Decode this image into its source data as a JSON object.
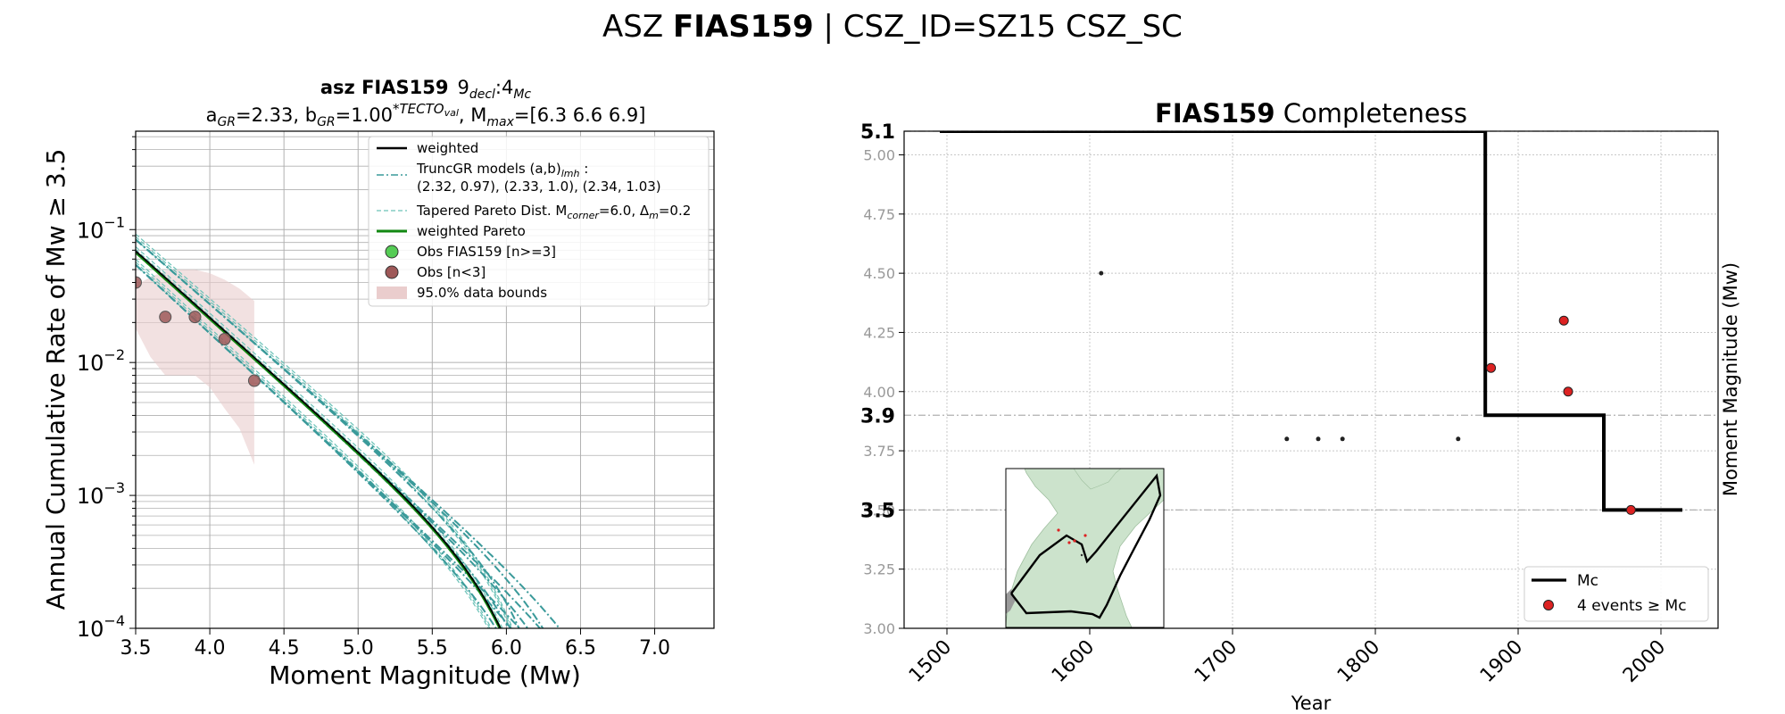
{
  "suptitle": {
    "prefix": "ASZ",
    "bold": "FIAS159",
    "suffix": "| CSZ_ID=SZ15 CSZ_SC"
  },
  "chart_data": [
    {
      "type": "line",
      "panel": "gr",
      "title_line1": {
        "bold": "asz FIAS159",
        "rest": "9",
        "decl": "decl",
        "colon": ":4",
        "mc": "Mc"
      },
      "title_line2": {
        "a": "a",
        "a_sub": "GR",
        "a_val": "=2.33,  b",
        "b_sub": "GR",
        "b_val": "=1.00",
        "b_sup": "*TECTO",
        "b_sup_sub": "val",
        "m_rest": ", M",
        "m_sub": "max",
        "m_val": "=[6.3 6.6 6.9]"
      },
      "xlabel": "Moment Magnitude (Mw)",
      "ylabel": "Annual Cumulative Rate of Mw  ≥  3.5",
      "xlim": [
        3.5,
        7.4
      ],
      "ylim": [
        0.0001,
        0.55
      ],
      "yscale": "log",
      "xticks": [
        "3.5",
        "4.0",
        "4.5",
        "5.0",
        "5.5",
        "6.0",
        "6.5",
        "7.0"
      ],
      "yticks": [
        {
          "v": 0.1,
          "base": "10",
          "exp": "−1"
        },
        {
          "v": 0.01,
          "base": "10",
          "exp": "−2"
        },
        {
          "v": 0.001,
          "base": "10",
          "exp": "−3"
        },
        {
          "v": 0.0001,
          "base": "10",
          "exp": "−4"
        }
      ],
      "grid": true,
      "legend_position": "top-right",
      "legend": {
        "weighted": "weighted",
        "truncgr_a": "TruncGR models (a,b)",
        "truncgr_sub": "lmh",
        "truncgr_b": " :",
        "truncgr_line2": " (2.32, 0.97), (2.33, 1.0), (2.34, 1.03)",
        "tapered_a": "Tapered Pareto Dist. M",
        "tapered_sub": "corner",
        "tapered_b": "=6.0, Δ",
        "tapered_sub2": "m",
        "tapered_c": "=0.2",
        "weighted_pareto": "weighted Pareto",
        "obs_main": "Obs FIAS159 [n>=3]",
        "obs_small": "Obs [n<3]",
        "bounds": "95.0% data bounds"
      },
      "observations": {
        "x": [
          3.5,
          3.7,
          3.9,
          4.1,
          4.3
        ],
        "y": [
          0.04,
          0.022,
          0.022,
          0.015,
          0.0073
        ]
      },
      "bounds": {
        "x": [
          3.5,
          3.6,
          3.7,
          3.8,
          3.9,
          4.0,
          4.1,
          4.2,
          4.3
        ],
        "upper": [
          0.038,
          0.044,
          0.049,
          0.05,
          0.05,
          0.047,
          0.042,
          0.036,
          0.029
        ],
        "lower": [
          0.018,
          0.011,
          0.008,
          0.008,
          0.008,
          0.0065,
          0.0045,
          0.0032,
          0.0017
        ]
      },
      "models": {
        "a": [
          2.32,
          2.33,
          2.34
        ],
        "b": [
          0.97,
          1.0,
          1.03
        ],
        "mmax": [
          6.3,
          6.6,
          6.9
        ],
        "mmin": 3.5,
        "mcorner": 6.0
      },
      "colors": {
        "truncgr": "#3a9a9a",
        "tapered": "#6cc2b8",
        "weighted": "#000000",
        "pareto": "#118811",
        "obs": "#9e5858",
        "obs_main": "#55cc55",
        "bounds": "#eacdcd"
      }
    },
    {
      "type": "line",
      "panel": "completeness",
      "title_bold": "FIAS159",
      "title_rest": "Completeness",
      "xlabel": "Year",
      "ylabel": "Moment Magnitude (Mw)",
      "xlim": [
        1470,
        2040
      ],
      "ylim": [
        3.0,
        5.1
      ],
      "xticks": [
        1500,
        1600,
        1700,
        1800,
        1900,
        2000
      ],
      "yticks": [
        "3.00",
        "3.25",
        "3.50",
        "3.75",
        "4.00",
        "4.25",
        "4.50",
        "4.75",
        "5.00"
      ],
      "mc_levels": [
        "5.1",
        "3.9",
        "3.5"
      ],
      "grid": true,
      "legend_position": "bottom-right",
      "legend": {
        "mc": "Mc",
        "events": "4 events  ≥  Mc"
      },
      "mc_step": {
        "x": [
          1495,
          1877,
          1877,
          1960,
          1960,
          2015
        ],
        "y": [
          5.1,
          5.1,
          3.9,
          3.9,
          3.5,
          3.5
        ]
      },
      "events_above": {
        "x": [
          1881,
          1932,
          1935,
          1979
        ],
        "y": [
          4.1,
          4.3,
          4.0,
          3.5
        ]
      },
      "events_below": {
        "x": [
          1608,
          1738,
          1760,
          1777,
          1858
        ],
        "y": [
          4.5,
          3.8,
          3.8,
          3.8,
          3.8
        ]
      },
      "colors": {
        "mc": "#000000",
        "event": "#dd2222",
        "small": "#222222",
        "land": "#cce3cc"
      }
    }
  ]
}
